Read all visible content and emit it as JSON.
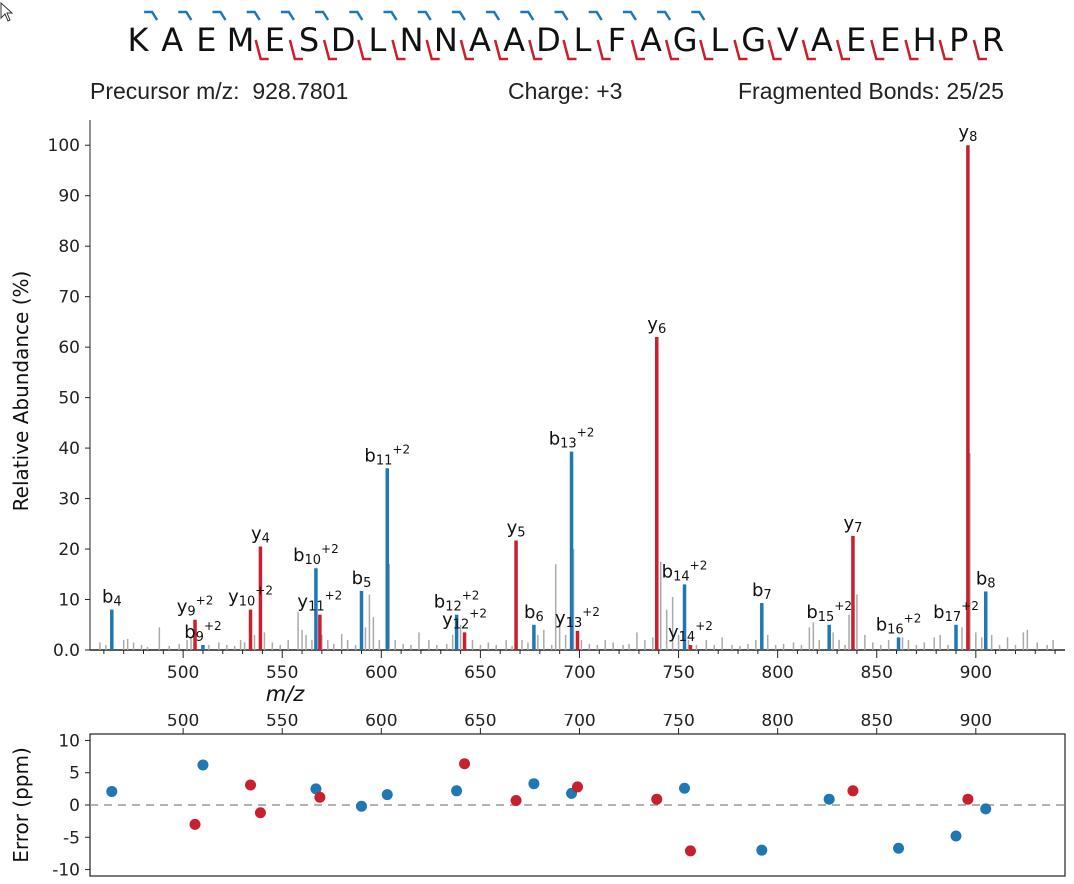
{
  "header": {
    "sequence": "KAEMESDLNNAADLFAGLGVAEEHPR",
    "precursor_label": "Precursor m/z:",
    "precursor_value": "928.7801",
    "charge_label": "Charge:",
    "charge_value": "+3",
    "fragmented_label": "Fragmented Bonds:",
    "fragmented_value": "25/25"
  },
  "colors": {
    "b_ion": "#1f77b4",
    "y_ion": "#c8202e",
    "unassigned": "#aaaaaa",
    "zero_line": "#999999"
  },
  "chart_data": [
    {
      "type": "bar",
      "ylabel": "Relative Abundance (%)",
      "xlabel": "m/z",
      "xlim": [
        453,
        945
      ],
      "ylim": [
        0,
        105
      ],
      "x_ticks": [
        500,
        550,
        600,
        650,
        700,
        750,
        800,
        850,
        900
      ],
      "y_ticks": [
        0,
        10,
        20,
        30,
        40,
        50,
        60,
        70,
        80,
        90,
        100
      ],
      "y_tick_labels": [
        "0.0",
        "10",
        "20",
        "30",
        "40",
        "50",
        "60",
        "70",
        "80",
        "90",
        "100"
      ],
      "annotated_peaks": [
        {
          "label": "b4",
          "series": "b",
          "mz": 464,
          "abundance": 8
        },
        {
          "label": "y9+2",
          "series": "y",
          "mz": 506,
          "abundance": 6
        },
        {
          "label": "b9+2",
          "series": "b",
          "mz": 510,
          "abundance": 1
        },
        {
          "label": "y10+2",
          "series": "y",
          "mz": 534,
          "abundance": 8
        },
        {
          "label": "y4",
          "series": "y",
          "mz": 539,
          "abundance": 20.5
        },
        {
          "label": "b10+2",
          "series": "b",
          "mz": 567,
          "abundance": 16.2
        },
        {
          "label": "y11+2",
          "series": "y",
          "mz": 569,
          "abundance": 7
        },
        {
          "label": "b5",
          "series": "b",
          "mz": 590,
          "abundance": 11.7
        },
        {
          "label": "b11+2",
          "series": "b",
          "mz": 603,
          "abundance": 36
        },
        {
          "label": "b12+2",
          "series": "b",
          "mz": 638,
          "abundance": 7
        },
        {
          "label": "y12+2",
          "series": "y",
          "mz": 642,
          "abundance": 3.5
        },
        {
          "label": "y5",
          "series": "y",
          "mz": 668,
          "abundance": 21.7
        },
        {
          "label": "b6",
          "series": "b",
          "mz": 677,
          "abundance": 5
        },
        {
          "label": "b13+2",
          "series": "b",
          "mz": 696,
          "abundance": 39.3
        },
        {
          "label": "y13+2",
          "series": "y",
          "mz": 699,
          "abundance": 3.8
        },
        {
          "label": "y6",
          "series": "y",
          "mz": 739,
          "abundance": 62
        },
        {
          "label": "b14+2",
          "series": "b",
          "mz": 753,
          "abundance": 13
        },
        {
          "label": "y14+2",
          "series": "y",
          "mz": 756,
          "abundance": 1
        },
        {
          "label": "b7",
          "series": "b",
          "mz": 792,
          "abundance": 9.3
        },
        {
          "label": "b15+2",
          "series": "b",
          "mz": 826,
          "abundance": 5
        },
        {
          "label": "y7",
          "series": "y",
          "mz": 838,
          "abundance": 22.6
        },
        {
          "label": "b16+2",
          "series": "b",
          "mz": 861,
          "abundance": 2.5
        },
        {
          "label": "b17+2",
          "series": "b",
          "mz": 890,
          "abundance": 5
        },
        {
          "label": "y8",
          "series": "y",
          "mz": 896,
          "abundance": 100
        },
        {
          "label": "b8",
          "series": "b",
          "mz": 905,
          "abundance": 11.6
        }
      ],
      "unassigned_peaks": [
        [
          458,
          1.5
        ],
        [
          461,
          1
        ],
        [
          470,
          2
        ],
        [
          472,
          2.2
        ],
        [
          475,
          1.5
        ],
        [
          479,
          1
        ],
        [
          482,
          0.6
        ],
        [
          488,
          4.5
        ],
        [
          493,
          0.8
        ],
        [
          498,
          1.2
        ],
        [
          502,
          2
        ],
        [
          504,
          2.5
        ],
        [
          513,
          1
        ],
        [
          518,
          1.5
        ],
        [
          522,
          1
        ],
        [
          526,
          0.8
        ],
        [
          529,
          2
        ],
        [
          531,
          1.5
        ],
        [
          536,
          3
        ],
        [
          541,
          3.5
        ],
        [
          545,
          1.5
        ],
        [
          549,
          1
        ],
        [
          553,
          2
        ],
        [
          558,
          7.5
        ],
        [
          560,
          4
        ],
        [
          562,
          3
        ],
        [
          565,
          2
        ],
        [
          570,
          3
        ],
        [
          573,
          2
        ],
        [
          576,
          1.2
        ],
        [
          580,
          3.2
        ],
        [
          583,
          2
        ],
        [
          587,
          1
        ],
        [
          592,
          4.5
        ],
        [
          594,
          11
        ],
        [
          596,
          6.5
        ],
        [
          599,
          2
        ],
        [
          604,
          17
        ],
        [
          607,
          2
        ],
        [
          611,
          1.2
        ],
        [
          615,
          1
        ],
        [
          619,
          3.5
        ],
        [
          624,
          2
        ],
        [
          628,
          1
        ],
        [
          633,
          1.2
        ],
        [
          636,
          3
        ],
        [
          640,
          5
        ],
        [
          646,
          2
        ],
        [
          650,
          1
        ],
        [
          654,
          1.5
        ],
        [
          658,
          1
        ],
        [
          663,
          2
        ],
        [
          666,
          0.8
        ],
        [
          671,
          2
        ],
        [
          674,
          1.5
        ],
        [
          679,
          3
        ],
        [
          682,
          4
        ],
        [
          686,
          1
        ],
        [
          688,
          17
        ],
        [
          690,
          6
        ],
        [
          693,
          3
        ],
        [
          697,
          20
        ],
        [
          701,
          2
        ],
        [
          705,
          1.2
        ],
        [
          709,
          1
        ],
        [
          713,
          2
        ],
        [
          717,
          1.5
        ],
        [
          722,
          1
        ],
        [
          725,
          1.2
        ],
        [
          729,
          3.5
        ],
        [
          733,
          2
        ],
        [
          737,
          2.5
        ],
        [
          741,
          17.5
        ],
        [
          744,
          8
        ],
        [
          747,
          10.5
        ],
        [
          750,
          3
        ],
        [
          755,
          2
        ],
        [
          759,
          1
        ],
        [
          764,
          2
        ],
        [
          768,
          1
        ],
        [
          772,
          2.5
        ],
        [
          777,
          1
        ],
        [
          781,
          0.8
        ],
        [
          785,
          1.2
        ],
        [
          789,
          2
        ],
        [
          795,
          3
        ],
        [
          799,
          1
        ],
        [
          803,
          1.2
        ],
        [
          808,
          1.5
        ],
        [
          812,
          1
        ],
        [
          816,
          4.5
        ],
        [
          818,
          5.5
        ],
        [
          821,
          2
        ],
        [
          828,
          3.5
        ],
        [
          831,
          2
        ],
        [
          834,
          1
        ],
        [
          836,
          7
        ],
        [
          840,
          11
        ],
        [
          844,
          3
        ],
        [
          848,
          1.5
        ],
        [
          852,
          1
        ],
        [
          856,
          2
        ],
        [
          863,
          2.5
        ],
        [
          866,
          2
        ],
        [
          870,
          1
        ],
        [
          874,
          1.5
        ],
        [
          879,
          2.5
        ],
        [
          882,
          3
        ],
        [
          886,
          1
        ],
        [
          893,
          4.5
        ],
        [
          897,
          39
        ],
        [
          900,
          3.5
        ],
        [
          903,
          2.5
        ],
        [
          908,
          3
        ],
        [
          912,
          1
        ],
        [
          916,
          2.5
        ],
        [
          920,
          1
        ],
        [
          924,
          3.5
        ],
        [
          926,
          4
        ],
        [
          931,
          1.5
        ],
        [
          936,
          1
        ],
        [
          939,
          2
        ]
      ]
    },
    {
      "type": "scatter",
      "ylabel": "Error (ppm)",
      "xlim": [
        453,
        945
      ],
      "ylim": [
        -11,
        11
      ],
      "x_ticks": [
        500,
        550,
        600,
        650,
        700,
        750,
        800,
        850,
        900
      ],
      "y_ticks": [
        -10,
        -5,
        0,
        5,
        10
      ],
      "y_tick_labels": [
        "-10",
        "-5",
        "0",
        "5",
        "10"
      ],
      "series": [
        {
          "name": "b",
          "points": [
            [
              464,
              2.1
            ],
            [
              510,
              6.2
            ],
            [
              567,
              2.5
            ],
            [
              590,
              -0.2
            ],
            [
              603,
              1.6
            ],
            [
              638,
              2.2
            ],
            [
              677,
              3.3
            ],
            [
              696,
              1.8
            ],
            [
              753,
              2.6
            ],
            [
              792,
              -7
            ],
            [
              826,
              0.9
            ],
            [
              861,
              -6.7
            ],
            [
              890,
              -4.8
            ],
            [
              905,
              -0.6
            ]
          ]
        },
        {
          "name": "y",
          "points": [
            [
              506,
              -3
            ],
            [
              534,
              3.1
            ],
            [
              539,
              -1.2
            ],
            [
              569,
              1.2
            ],
            [
              642,
              6.4
            ],
            [
              668,
              0.7
            ],
            [
              699,
              2.8
            ],
            [
              739,
              0.9
            ],
            [
              756,
              -7.1
            ],
            [
              838,
              2.2
            ],
            [
              896,
              0.9
            ]
          ]
        }
      ]
    }
  ]
}
